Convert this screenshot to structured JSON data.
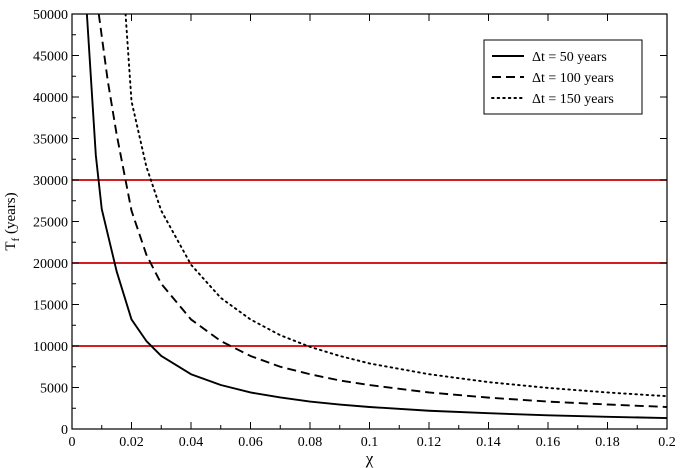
{
  "chart_data": {
    "type": "line",
    "title": "",
    "xlabel": "χ",
    "ylabel_main": "T",
    "ylabel_sub": "f",
    "ylabel_rest": " (years)",
    "xlim": [
      0,
      0.2
    ],
    "ylim": [
      0,
      50000
    ],
    "xticks": [
      "0",
      "0.02",
      "0.04",
      "0.06",
      "0.08",
      "0.1",
      "0.12",
      "0.14",
      "0.16",
      "0.18",
      "0.2"
    ],
    "yticks": [
      "0",
      "5000",
      "10000",
      "15000",
      "20000",
      "25000",
      "30000",
      "35000",
      "40000",
      "45000",
      "50000"
    ],
    "grid": false,
    "legend_position": "top-right",
    "hlines": [
      {
        "y": 10000,
        "color": "#cc0000"
      },
      {
        "y": 20000,
        "color": "#cc0000"
      },
      {
        "y": 30000,
        "color": "#cc0000"
      }
    ],
    "series": [
      {
        "name": "Δt = 50 years",
        "style": "solid",
        "color": "#000000",
        "x": [
          0.005,
          0.008,
          0.01,
          0.015,
          0.02,
          0.025,
          0.03,
          0.04,
          0.05,
          0.06,
          0.07,
          0.08,
          0.09,
          0.1,
          0.12,
          0.14,
          0.16,
          0.18,
          0.2
        ],
        "y": [
          50000,
          33000,
          26500,
          19000,
          13200,
          10600,
          8800,
          6600,
          5300,
          4400,
          3800,
          3300,
          2950,
          2650,
          2200,
          1900,
          1650,
          1470,
          1320
        ]
      },
      {
        "name": "Δt = 100 years",
        "style": "dashed",
        "color": "#000000",
        "x": [
          0.009,
          0.012,
          0.015,
          0.02,
          0.025,
          0.03,
          0.04,
          0.05,
          0.06,
          0.07,
          0.08,
          0.09,
          0.1,
          0.12,
          0.14,
          0.16,
          0.18,
          0.2
        ],
        "y": [
          50000,
          42000,
          35500,
          26300,
          21000,
          17500,
          13200,
          10600,
          8800,
          7500,
          6600,
          5850,
          5300,
          4400,
          3780,
          3300,
          2950,
          2650
        ]
      },
      {
        "name": "Δt = 150 years",
        "style": "dotted",
        "color": "#000000",
        "x": [
          0.018,
          0.02,
          0.025,
          0.03,
          0.04,
          0.05,
          0.06,
          0.07,
          0.08,
          0.09,
          0.1,
          0.12,
          0.14,
          0.16,
          0.18,
          0.2
        ],
        "y": [
          50000,
          39500,
          31600,
          26300,
          19800,
          15800,
          13200,
          11300,
          9900,
          8800,
          7900,
          6600,
          5650,
          4950,
          4400,
          3950
        ]
      }
    ]
  }
}
